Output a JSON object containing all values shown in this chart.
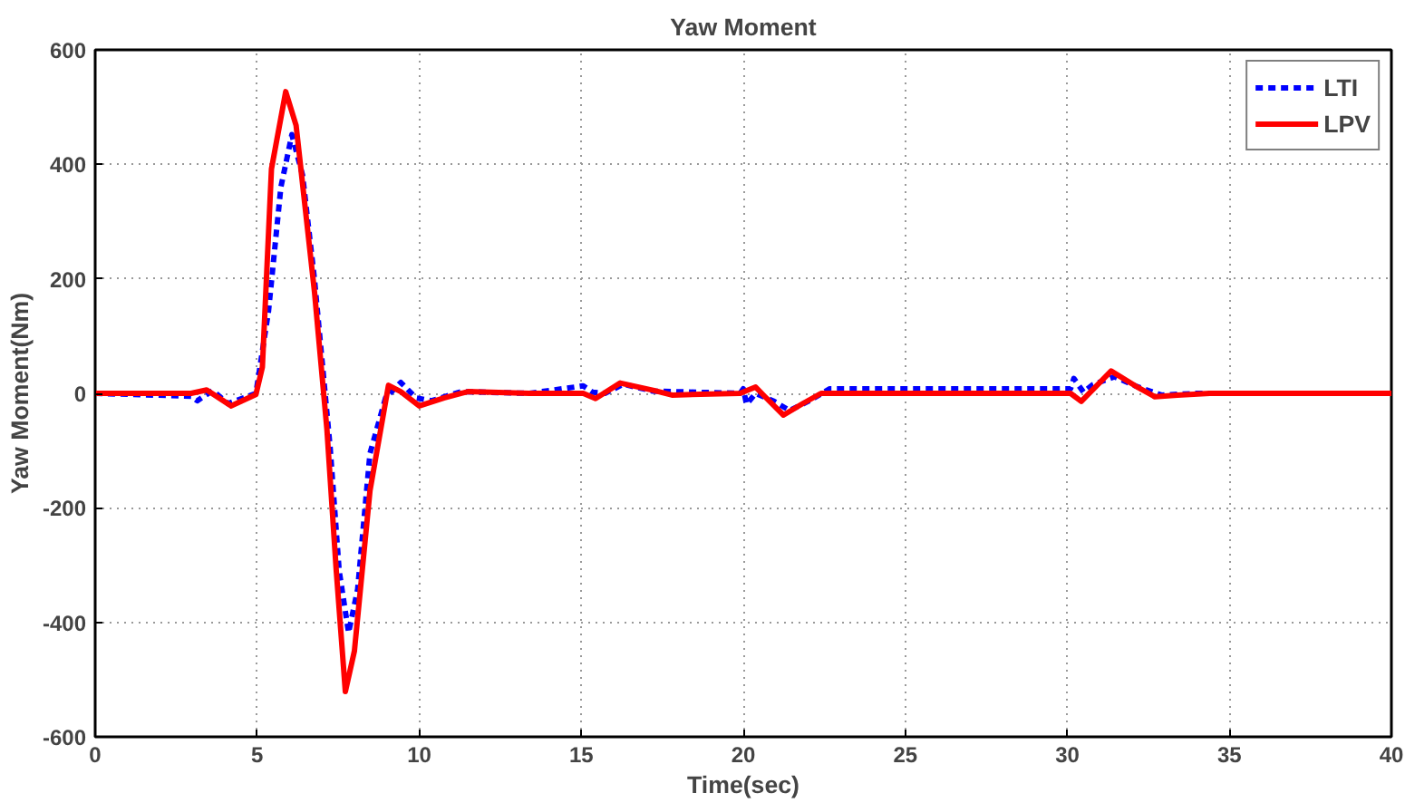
{
  "chart_data": {
    "type": "line",
    "title": "Yaw Moment",
    "xlabel": "Time(sec)",
    "ylabel": "Yaw Moment(Nm)",
    "xlim": [
      0,
      40
    ],
    "ylim": [
      -600,
      600
    ],
    "xticks": [
      0,
      5,
      10,
      15,
      20,
      25,
      30,
      35,
      40
    ],
    "yticks": [
      -600,
      -400,
      -200,
      0,
      200,
      400,
      600
    ],
    "grid": true,
    "legend": "top right",
    "series": [
      {
        "name": "LTI",
        "color": "#0000ff",
        "line_style": "dashed",
        "x": [
          0,
          2.96,
          3.15,
          3.63,
          4.1,
          4.96,
          5.35,
          5.73,
          6.07,
          6.4,
          6.77,
          7.25,
          7.53,
          7.82,
          8.1,
          8.48,
          8.96,
          9.43,
          9.9,
          10.38,
          11.3,
          13.4,
          15.06,
          15.35,
          15.73,
          16.3,
          17.2,
          19.9,
          20.0,
          20.1,
          20.38,
          20.95,
          21.43,
          22.0,
          22.67,
          30.1,
          30.2,
          30.5,
          30.78,
          31.45,
          32.1,
          32.9,
          34.0,
          40
        ],
        "values": [
          0,
          -5,
          -13,
          5,
          -18,
          0,
          144,
          360,
          452,
          381,
          198,
          -94,
          -310,
          -418,
          -342,
          -105,
          -8,
          19,
          -8,
          -13,
          3,
          0,
          13,
          2,
          0,
          16,
          4,
          0,
          8,
          -19,
          0,
          -14,
          -30,
          -14,
          8,
          8,
          26,
          2,
          15,
          29,
          13,
          -3,
          0,
          0
        ]
      },
      {
        "name": "LPV",
        "color": "#ff0000",
        "line_style": "solid",
        "x": [
          0,
          2.96,
          3.44,
          4.2,
          4.96,
          5.16,
          5.44,
          5.88,
          6.2,
          6.77,
          7.15,
          7.44,
          7.72,
          8.0,
          8.48,
          9.05,
          9.43,
          10.0,
          10.76,
          11.5,
          13.4,
          15.06,
          15.44,
          16.2,
          17.25,
          17.8,
          19.9,
          20.38,
          20.67,
          21.24,
          21.8,
          22.4,
          30.1,
          30.43,
          31.35,
          32.1,
          32.7,
          33.4,
          34.4,
          40
        ],
        "values": [
          0,
          0,
          6,
          -22,
          -2,
          46,
          392,
          527,
          468,
          176,
          -62,
          -310,
          -521,
          -450,
          -170,
          14,
          3,
          -22,
          -8,
          3,
          0,
          0,
          -9,
          18,
          5,
          -3,
          0,
          11,
          -6,
          -38,
          -19,
          0,
          0,
          -14,
          39,
          13,
          -6,
          -3,
          0,
          0
        ]
      }
    ]
  }
}
